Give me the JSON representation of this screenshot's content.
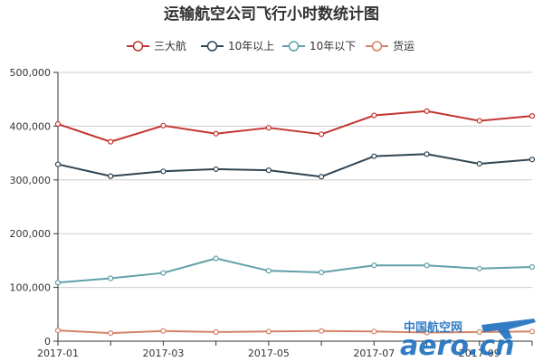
{
  "chart_data": {
    "type": "line",
    "title": "运输航空公司飞行小时数统计图",
    "x": [
      "2017-01",
      "2017-02",
      "2017-03",
      "2017-04",
      "2017-05",
      "2017-06",
      "2017-07",
      "2017-08",
      "2017-09",
      "2017-10"
    ],
    "x_tick_labels": [
      "2017-01",
      "2017-03",
      "2017-05",
      "2017-07",
      "2017-09"
    ],
    "ylim": [
      0,
      500000
    ],
    "y_tick_labels": [
      "0",
      "100,000",
      "200,000",
      "300,000",
      "400,000",
      "500,000"
    ],
    "grid": "horizontal",
    "legend_position": "top-center",
    "series": [
      {
        "name": "三大航",
        "color": "#c23531",
        "values": [
          404000,
          371000,
          401000,
          386000,
          397000,
          385000,
          420000,
          428000,
          410000,
          419000
        ]
      },
      {
        "name": "10年以上",
        "color": "#2f4554",
        "values": [
          329000,
          307000,
          316000,
          320000,
          318000,
          306000,
          344000,
          348000,
          330000,
          338000
        ]
      },
      {
        "name": "10年以下",
        "color": "#61a0a8",
        "values": [
          109000,
          117000,
          127000,
          154000,
          131000,
          128000,
          141000,
          141000,
          135000,
          138000
        ]
      },
      {
        "name": "货运",
        "color": "#d48265",
        "values": [
          20000,
          15000,
          19000,
          17000,
          18000,
          19000,
          18000,
          16000,
          17000,
          18000
        ]
      }
    ]
  },
  "watermark": {
    "cn": "中国航空网",
    "en": "aero.cn"
  }
}
